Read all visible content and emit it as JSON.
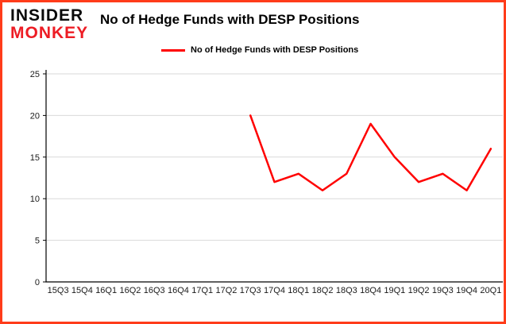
{
  "logo": {
    "line1": "INSIDER",
    "line2": "MONKEY"
  },
  "header": {
    "title": "No of Hedge Funds with DESP Positions"
  },
  "legend": {
    "label": "No of Hedge Funds with DESP Positions"
  },
  "colors": {
    "line": "#ff0000",
    "border": "#ff3c1a",
    "logo_red": "#ed1c24",
    "grid": "#d9d9d9",
    "axis": "#000000",
    "tick_text": "#1a1a1a"
  },
  "chart_data": {
    "type": "line",
    "title": "No of Hedge Funds with DESP Positions",
    "categories": [
      "15Q3",
      "15Q4",
      "16Q1",
      "16Q2",
      "16Q3",
      "16Q4",
      "17Q1",
      "17Q2",
      "17Q3",
      "17Q4",
      "18Q1",
      "18Q2",
      "18Q3",
      "18Q4",
      "19Q1",
      "19Q2",
      "19Q3",
      "19Q4",
      "20Q1"
    ],
    "series": [
      {
        "name": "No of Hedge Funds with DESP Positions",
        "values": [
          null,
          null,
          null,
          null,
          null,
          null,
          null,
          null,
          20,
          12,
          13,
          11,
          13,
          19,
          15,
          12,
          13,
          11,
          16
        ]
      }
    ],
    "xlabel": "",
    "ylabel": "",
    "ylim": [
      0,
      25
    ],
    "yticks": [
      0,
      5,
      10,
      15,
      20,
      25
    ],
    "grid": "horizontal",
    "legend_position": "top"
  }
}
